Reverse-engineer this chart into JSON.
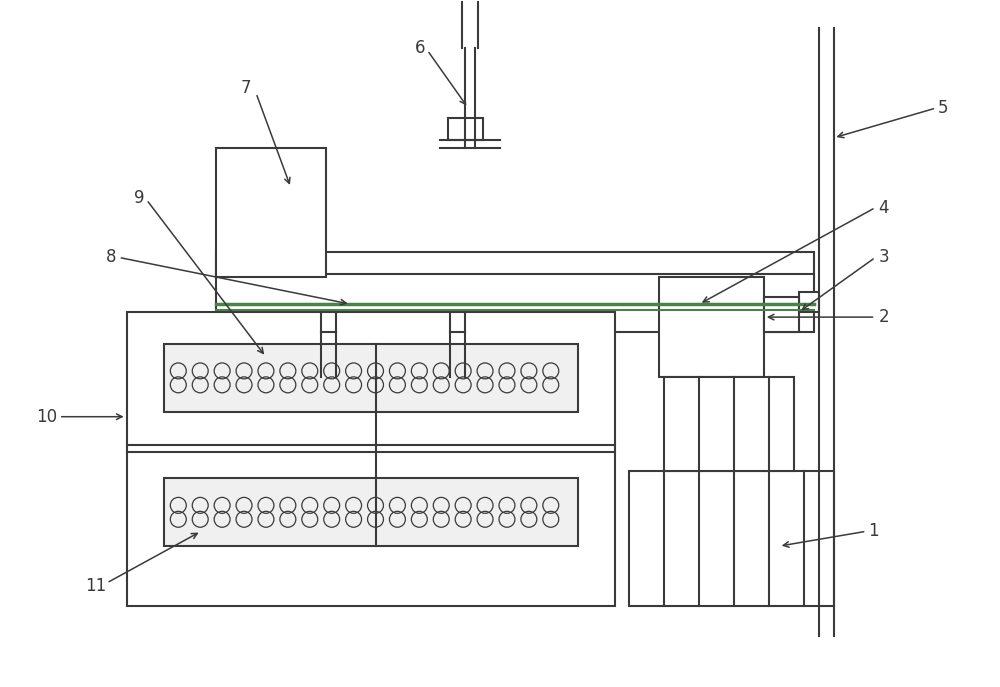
{
  "bg_color": "#ffffff",
  "lc": "#3a3a3a",
  "green": "#4a804a",
  "fig_w": 10.0,
  "fig_h": 6.87,
  "dpi": 100
}
